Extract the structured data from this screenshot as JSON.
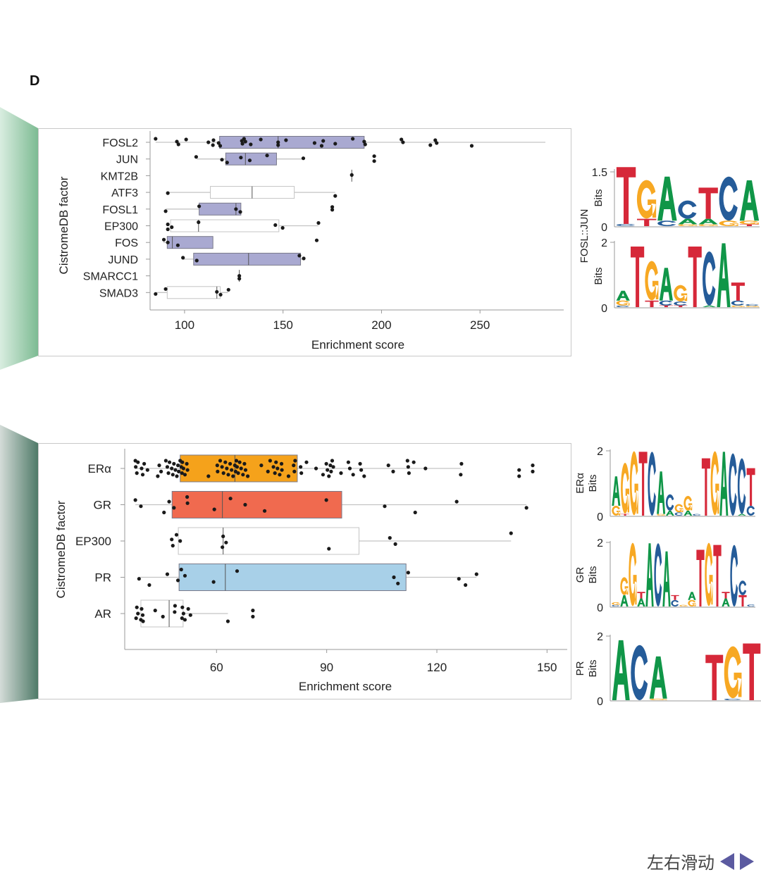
{
  "panel_label": "D",
  "footer": {
    "text": "左右滑动",
    "left_arrow": "arrow-left-icon",
    "right_arrow": "arrow-right-icon",
    "arrow_color": "#5b5aa0"
  },
  "chart_data": [
    {
      "type": "boxplot",
      "xlabel": "Enrichment score",
      "ylabel": "CistromeDB factor",
      "xlim": [
        82.5,
        292.5
      ],
      "xticks": [
        100,
        150,
        200,
        250
      ],
      "grid": false,
      "series": [
        {
          "name": "FOSL2",
          "color": "#a9a9d1",
          "box": [
            117.8,
            147.5,
            191.2
          ],
          "whiskers": [
            85.3,
            283.2
          ],
          "points": [
            85.3,
            96.1,
            96.9,
            100.8,
            112.1,
            114.4,
            114.7,
            117.3,
            118.1,
            129.1,
            129.4,
            130.2,
            130.9,
            133.6,
            138.7,
            147.5,
            147.5,
            151.5,
            166.0,
            169.6,
            170.4,
            176.5,
            185.4,
            191.2,
            191.7,
            210.1,
            210.9,
            224.8,
            227.3,
            228.0,
            245.8
          ]
        },
        {
          "name": "JUN",
          "color": "#a9a9d1",
          "box": [
            120.9,
            130.9,
            146.7
          ],
          "whiskers": [
            106.2,
            160.3
          ],
          "points": [
            105.9,
            119.0,
            121.6,
            128.6,
            133.1,
            141.9,
            160.3,
            196.3,
            196.3
          ]
        },
        {
          "name": "KMT2B",
          "color": "#a9a9d1",
          "box": [
            184.9,
            184.9,
            184.9
          ],
          "whiskers": [
            184.9,
            184.9
          ],
          "points": [
            184.9
          ]
        },
        {
          "name": "ATF3",
          "color": "#ffffff",
          "box": [
            113.1,
            134.3,
            155.7
          ],
          "whiskers": [
            91.5,
            176.5
          ],
          "points": [
            91.5,
            176.5
          ]
        },
        {
          "name": "FOSL1",
          "color": "#a9a9d1",
          "box": [
            107.4,
            126.1,
            128.6
          ],
          "whiskers": [
            90.4,
            128.6
          ],
          "points": [
            90.4,
            107.4,
            126.1,
            128.3,
            175.0,
            175.0
          ]
        },
        {
          "name": "EP300",
          "color": "#ffffff",
          "box": [
            92.9,
            107.1,
            147.9
          ],
          "whiskers": [
            92.9,
            168.0
          ],
          "points": [
            91.5,
            91.5,
            93.5,
            107.1,
            146.1,
            149.8,
            168.0
          ]
        },
        {
          "name": "FOS",
          "color": "#a9a9d1",
          "box": [
            91.2,
            93.8,
            114.4
          ],
          "whiskers": [
            89.2,
            114.4
          ],
          "points": [
            89.5,
            91.5,
            96.6,
            167.1
          ]
        },
        {
          "name": "JUND",
          "color": "#a9a9d1",
          "box": [
            104.6,
            132.5,
            158.9
          ],
          "whiskers": [
            99.2,
            160.5
          ],
          "points": [
            99.2,
            106.2,
            158.3,
            160.5
          ]
        },
        {
          "name": "SMARCC1",
          "color": "#a9a9d1",
          "box": [
            127.8,
            127.8,
            127.8
          ],
          "whiskers": [
            127.8,
            127.8
          ],
          "points": [
            127.8,
            127.8
          ]
        },
        {
          "name": "SMAD3",
          "color": "#ffffff",
          "box": [
            91.2,
            116.4,
            118.1
          ],
          "whiskers": [
            85.3,
            122.1
          ],
          "points": [
            85.3,
            90.4,
            116.4,
            118.3,
            122.3
          ]
        }
      ]
    },
    {
      "type": "boxplot",
      "xlabel": "Enrichment score",
      "ylabel": "CistromeDB factor",
      "xlim": [
        35,
        155.5
      ],
      "xticks": [
        60,
        90,
        120,
        150
      ],
      "grid": false,
      "series": [
        {
          "name": "ERα",
          "color": "#f5a21b",
          "box": [
            50.1,
            65.0,
            82.0
          ],
          "whiskers": [
            37.9,
            126.5
          ],
          "points": [
            37.9,
            38.0,
            38.3,
            38.6,
            39.6,
            39.9,
            40.3,
            41.2,
            44.0,
            44.4,
            44.9,
            46.2,
            46.6,
            46.9,
            47.2,
            47.8,
            48.1,
            48.4,
            48.8,
            49.2,
            49.5,
            49.7,
            50.1,
            50.4,
            50.6,
            50.7,
            51.0,
            51.4,
            51.9,
            52.1,
            57.8,
            60.2,
            60.3,
            61.0,
            61.5,
            61.9,
            62.4,
            62.8,
            63.2,
            63.7,
            64.1,
            64.5,
            65.0,
            65.2,
            65.4,
            65.6,
            65.9,
            66.3,
            66.7,
            67.2,
            67.6,
            67.9,
            68.5,
            72.2,
            74.0,
            74.6,
            75.5,
            75.9,
            76.2,
            76.6,
            77.2,
            77.7,
            77.8,
            79.6,
            81.0,
            81.2,
            81.4,
            82.9,
            83.1,
            84.5,
            87.1,
            89.0,
            89.9,
            90.2,
            90.6,
            91.0,
            91.2,
            91.5,
            91.8,
            93.9,
            95.9,
            96.3,
            97.2,
            99.1,
            99.4,
            100.2,
            106.8,
            108.1,
            112.0,
            112.2,
            112.4,
            113.7,
            116.9,
            126.5,
            126.7,
            142.4,
            142.4,
            146.1,
            146.1
          ]
        },
        {
          "name": "GR",
          "color": "#f06a4f",
          "box": [
            47.9,
            61.6,
            94.1
          ],
          "whiskers": [
            37.9,
            144.4
          ],
          "points": [
            37.9,
            39.4,
            45.7,
            47.1,
            48.4,
            52.0,
            52.1,
            59.4,
            63.8,
            67.8,
            73.1,
            89.9,
            105.8,
            114.1,
            125.4,
            144.4
          ]
        },
        {
          "name": "EP300",
          "color": "#ffffff",
          "box": [
            49.6,
            61.8,
            98.8
          ],
          "whiskers": [
            49.6,
            140.2
          ],
          "points": [
            47.8,
            48.1,
            49.1,
            50.1,
            61.6,
            61.8,
            62.6,
            90.6,
            107.2,
            108.7,
            140.2
          ]
        },
        {
          "name": "PR",
          "color": "#a8d0e8",
          "box": [
            49.8,
            62.4,
            111.6
          ],
          "whiskers": [
            38.7,
            130.8
          ],
          "points": [
            38.9,
            41.7,
            46.6,
            49.5,
            50.4,
            51.4,
            59.2,
            65.6,
            108.3,
            109.4,
            112.2,
            126.0,
            127.8,
            130.8
          ]
        },
        {
          "name": "AR",
          "color": "#ffffff",
          "box": [
            39.4,
            47.1,
            50.9
          ],
          "whiskers": [
            38.1,
            63.1
          ],
          "points": [
            38.1,
            38.3,
            38.6,
            39.4,
            39.6,
            39.9,
            40.0,
            43.3,
            45.4,
            48.7,
            48.6,
            50.6,
            50.7,
            51.0,
            51.4,
            52.3,
            52.9,
            63.1,
            69.9,
            69.9
          ]
        }
      ]
    }
  ],
  "motif_logos": {
    "letter_colors": {
      "A": "#109648",
      "C": "#255c99",
      "G": "#f7a823",
      "T": "#d62839"
    },
    "group_label": "FOSL::JUN",
    "logos": [
      {
        "id": "fosl-jun-1",
        "label": "",
        "ylabel": "Bits",
        "ytick_labels": [
          "0",
          "1.5"
        ],
        "columns": [
          [
            [
              "C",
              0.06
            ],
            [
              "T",
              1.55
            ]
          ],
          [
            [
              "T",
              0.2
            ],
            [
              "G",
              1.05
            ]
          ],
          [
            [
              "C",
              0.15
            ],
            [
              "A",
              1.2
            ]
          ],
          [
            [
              "G",
              0.05
            ],
            [
              "A",
              0.15
            ],
            [
              "C",
              0.5
            ]
          ],
          [
            [
              "G",
              0.05
            ],
            [
              "A",
              0.15
            ],
            [
              "T",
              0.85
            ]
          ],
          [
            [
              "G",
              0.15
            ],
            [
              "C",
              1.2
            ]
          ],
          [
            [
              "T",
              0.05
            ],
            [
              "G",
              0.1
            ],
            [
              "A",
              1.1
            ]
          ]
        ]
      },
      {
        "id": "fosl-jun-2",
        "label": "",
        "ylabel": "Bits",
        "ytick_labels": [
          "0",
          "2"
        ],
        "columns": [
          [
            [
              "C",
              0.05
            ],
            [
              "G",
              0.15
            ],
            [
              "A",
              0.3
            ]
          ],
          [
            [
              "T",
              1.85
            ]
          ],
          [
            [
              "T",
              0.2
            ],
            [
              "G",
              1.2
            ]
          ],
          [
            [
              "T",
              0.05
            ],
            [
              "C",
              0.15
            ],
            [
              "A",
              1.0
            ]
          ],
          [
            [
              "T",
              0.05
            ],
            [
              "C",
              0.12
            ],
            [
              "G",
              0.5
            ]
          ],
          [
            [
              "T",
              1.85
            ]
          ],
          [
            [
              "A",
              0.05
            ],
            [
              "C",
              1.65
            ]
          ],
          [
            [
              "A",
              1.95
            ]
          ],
          [
            [
              "G",
              0.05
            ],
            [
              "C",
              0.15
            ],
            [
              "T",
              0.55
            ]
          ],
          [
            [
              "G",
              0.04
            ],
            [
              "C",
              0.05
            ]
          ]
        ]
      },
      {
        "id": "era",
        "label": "ERα",
        "ylabel": "Bits",
        "ytick_labels": [
          "0",
          "2"
        ],
        "columns": [
          [
            [
              "G",
              0.3
            ],
            [
              "A",
              0.9
            ]
          ],
          [
            [
              "T",
              0.05
            ],
            [
              "G",
              1.55
            ]
          ],
          [
            [
              "G",
              1.95
            ]
          ],
          [
            [
              "T",
              1.95
            ]
          ],
          [
            [
              "C",
              1.95
            ]
          ],
          [
            [
              "G",
              0.05
            ],
            [
              "A",
              1.3
            ]
          ],
          [
            [
              "A",
              0.15
            ],
            [
              "C",
              0.5
            ]
          ],
          [
            [
              "C",
              0.1
            ],
            [
              "G",
              0.25
            ]
          ],
          [
            [
              "A",
              0.15
            ],
            [
              "G",
              0.45
            ]
          ],
          [
            [
              "C",
              0.05
            ]
          ],
          [
            [
              "T",
              1.75
            ]
          ],
          [
            [
              "G",
              1.95
            ]
          ],
          [
            [
              "A",
              1.95
            ]
          ],
          [
            [
              "C",
              1.9
            ]
          ],
          [
            [
              "A",
              0.05
            ],
            [
              "C",
              1.7
            ]
          ],
          [
            [
              "C",
              0.3
            ],
            [
              "T",
              1.15
            ]
          ]
        ]
      },
      {
        "id": "gr",
        "label": "GR",
        "ylabel": "Bits",
        "ytick_labels": [
          "0",
          "2"
        ],
        "columns": [
          [
            [
              "C",
              0.05
            ],
            [
              "G",
              0.08
            ]
          ],
          [
            [
              "A",
              0.35
            ],
            [
              "G",
              0.55
            ]
          ],
          [
            [
              "G",
              1.95
            ]
          ],
          [
            [
              "A",
              0.25
            ],
            [
              "T",
              0.2
            ]
          ],
          [
            [
              "A",
              1.95
            ]
          ],
          [
            [
              "C",
              1.95
            ]
          ],
          [
            [
              "A",
              1.7
            ]
          ],
          [
            [
              "C",
              0.2
            ],
            [
              "T",
              0.15
            ]
          ],
          [
            [
              "G",
              0.05
            ]
          ],
          [
            [
              "G",
              0.2
            ],
            [
              "A",
              0.25
            ]
          ],
          [
            [
              "T",
              1.75
            ]
          ],
          [
            [
              "G",
              1.95
            ]
          ],
          [
            [
              "T",
              1.9
            ]
          ],
          [
            [
              "A",
              0.25
            ],
            [
              "T",
              0.2
            ]
          ],
          [
            [
              "C",
              1.9
            ]
          ],
          [
            [
              "T",
              0.35
            ],
            [
              "C",
              0.45
            ]
          ],
          [
            [
              "C",
              0.06
            ]
          ]
        ]
      },
      {
        "id": "pr",
        "label": "PR",
        "ylabel": "Bits",
        "ytick_labels": [
          "0",
          "2"
        ],
        "columns": [
          [
            [
              "A",
              1.85
            ]
          ],
          [
            [
              "C",
              1.7
            ]
          ],
          [
            [
              "G",
              0.05
            ],
            [
              "A",
              1.3
            ]
          ],
          [],
          [],
          [
            [
              "T",
              1.4
            ]
          ],
          [
            [
              "C",
              0.05
            ],
            [
              "G",
              1.6
            ]
          ],
          [
            [
              "T",
              1.75
            ]
          ]
        ]
      }
    ]
  }
}
